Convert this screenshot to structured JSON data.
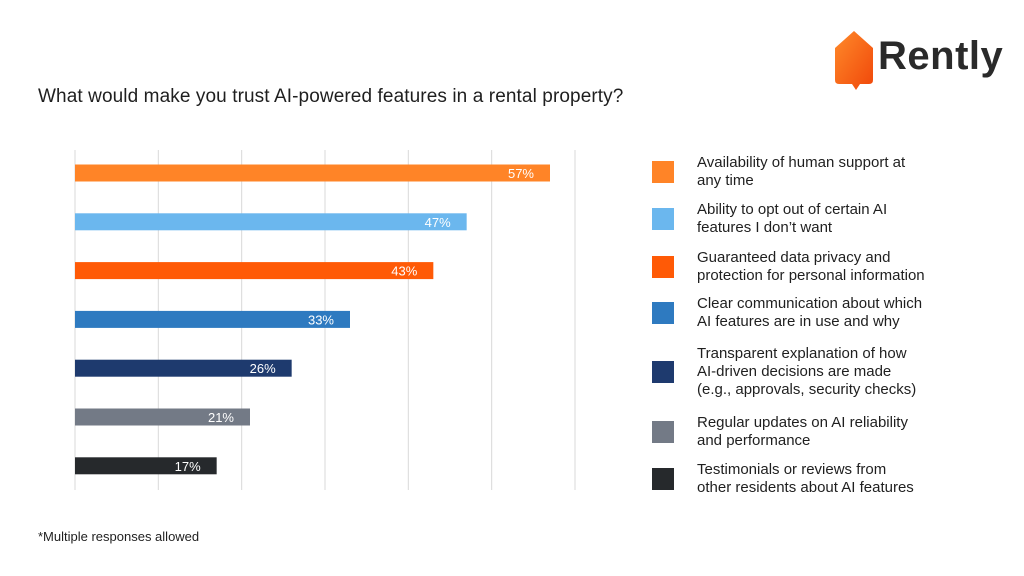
{
  "brand": {
    "name": "Rently",
    "accent": "#FF6A14"
  },
  "chart_data": {
    "type": "bar",
    "orientation": "horizontal",
    "title": "What would make you trust AI-powered features in a rental property?",
    "xlabel": "",
    "ylabel": "",
    "xlim": [
      0,
      60
    ],
    "grid": true,
    "legend_position": "right",
    "value_suffix": "%",
    "categories": [
      "Availability of human support at any time",
      "Ability to opt out of certain AI features I don’t want",
      "Guaranteed data privacy and protection for personal information",
      "Clear communication about which AI features are in use and why",
      "Transparent explanation of how AI-driven decisions are made (e.g., approvals, security checks)",
      "Regular updates on AI reliability and performance",
      "Testimonials or reviews from other residents about AI features"
    ],
    "values": [
      57,
      47,
      43,
      33,
      26,
      21,
      17
    ],
    "colors": [
      "#FF8427",
      "#6BB7EE",
      "#FF5A06",
      "#2E7AC0",
      "#1E3A6E",
      "#737A86",
      "#26292C"
    ],
    "data_labels": [
      "57%",
      "47%",
      "43%",
      "33%",
      "26%",
      "21%",
      "17%"
    ]
  },
  "legend": {
    "items": [
      {
        "lines": [
          "Availability of human support at",
          "any time"
        ],
        "color": "#FF8427"
      },
      {
        "lines": [
          "Ability to opt out of certain AI",
          "features I don’t want"
        ],
        "color": "#6BB7EE"
      },
      {
        "lines": [
          "Guaranteed data privacy and",
          "protection for personal information"
        ],
        "color": "#FF5A06"
      },
      {
        "lines": [
          "Clear communication about which",
          "AI features are in use and why"
        ],
        "color": "#2E7AC0"
      },
      {
        "lines": [
          "Transparent explanation of how",
          "AI-driven decisions are made",
          "(e.g., approvals, security checks)"
        ],
        "color": "#1E3A6E"
      },
      {
        "lines": [
          "Regular updates on AI reliability",
          "and performance"
        ],
        "color": "#737A86"
      },
      {
        "lines": [
          "Testimonials or reviews from",
          "other residents about AI features"
        ],
        "color": "#26292C"
      }
    ]
  },
  "footnote": "*Multiple responses allowed"
}
